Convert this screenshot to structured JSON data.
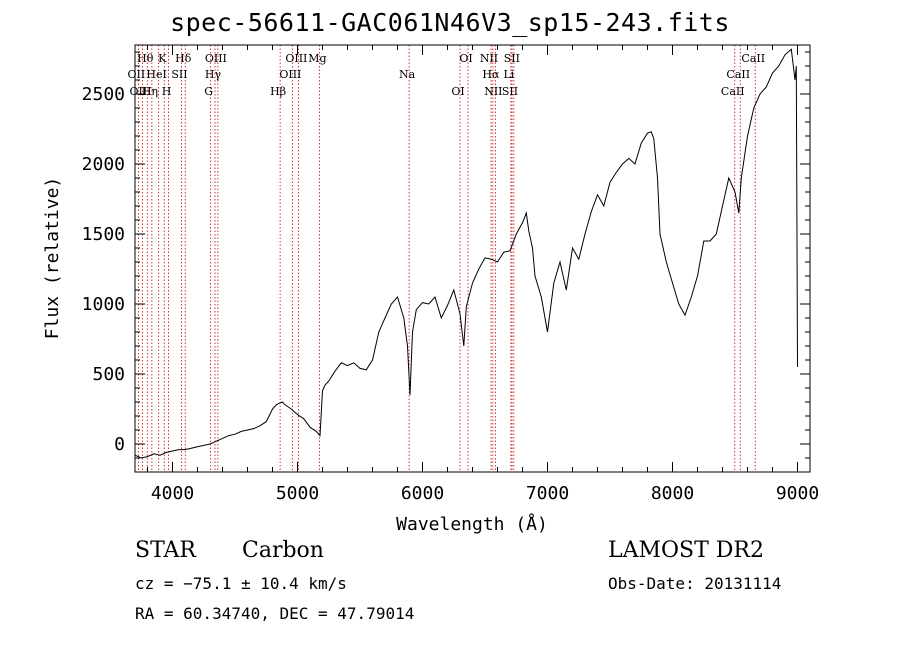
{
  "chart_data": {
    "type": "line",
    "title": "spec-56611-GAC061N46V3_sp15-243.fits",
    "xlabel": "Wavelength (Å)",
    "ylabel": "Flux (relative)",
    "xlim": [
      3700,
      9100
    ],
    "ylim": [
      -200,
      2850
    ],
    "xticks": [
      4000,
      5000,
      6000,
      7000,
      8000,
      9000
    ],
    "yticks": [
      0,
      500,
      1000,
      1500,
      2000,
      2500
    ],
    "grid": false,
    "line_color": "#000000",
    "marker_color": "#cc0000",
    "series": [
      {
        "x": [
          3700,
          3750,
          3800,
          3850,
          3900,
          3950,
          4000,
          4050,
          4100,
          4150,
          4200,
          4250,
          4300,
          4350,
          4400,
          4450,
          4500,
          4550,
          4600,
          4650,
          4700,
          4750,
          4800,
          4830,
          4850,
          4880,
          4900,
          4950,
          5000,
          5050,
          5100,
          5150,
          5180,
          5200,
          5220,
          5250,
          5300,
          5350,
          5400,
          5450,
          5500,
          5550,
          5600,
          5650,
          5680,
          5700,
          5750,
          5800,
          5850,
          5880,
          5900,
          5920,
          5950,
          6000,
          6050,
          6100,
          6150,
          6200,
          6250,
          6300,
          6330,
          6350,
          6400,
          6450,
          6500,
          6550,
          6600,
          6650,
          6700,
          6750,
          6800,
          6830,
          6850,
          6880,
          6900,
          6950,
          7000,
          7050,
          7100,
          7150,
          7200,
          7250,
          7300,
          7350,
          7400,
          7450,
          7500,
          7550,
          7600,
          7650,
          7700,
          7750,
          7800,
          7830,
          7850,
          7880,
          7900,
          7950,
          8000,
          8050,
          8100,
          8150,
          8200,
          8250,
          8300,
          8350,
          8400,
          8450,
          8500,
          8530,
          8550,
          8600,
          8650,
          8700,
          8750,
          8800,
          8850,
          8900,
          8950,
          8980,
          8990,
          9000
        ],
        "y": [
          -80,
          -100,
          -90,
          -70,
          -80,
          -60,
          -50,
          -40,
          -40,
          -30,
          -20,
          -10,
          0,
          20,
          40,
          60,
          70,
          90,
          100,
          110,
          130,
          160,
          250,
          280,
          290,
          300,
          280,
          250,
          210,
          180,
          120,
          90,
          60,
          380,
          420,
          450,
          520,
          580,
          560,
          580,
          540,
          530,
          600,
          800,
          860,
          900,
          1000,
          1050,
          900,
          700,
          350,
          800,
          960,
          1010,
          1000,
          1050,
          900,
          990,
          1100,
          930,
          700,
          980,
          1150,
          1250,
          1330,
          1320,
          1300,
          1370,
          1380,
          1500,
          1580,
          1650,
          1520,
          1400,
          1200,
          1050,
          800,
          1150,
          1300,
          1100,
          1400,
          1320,
          1500,
          1660,
          1780,
          1700,
          1870,
          1940,
          2000,
          2040,
          2000,
          2150,
          2220,
          2230,
          2180,
          1900,
          1500,
          1300,
          1150,
          1000,
          920,
          1050,
          1200,
          1450,
          1450,
          1500,
          1700,
          1900,
          1800,
          1650,
          1900,
          2200,
          2400,
          2500,
          2550,
          2650,
          2700,
          2780,
          2820,
          2600,
          2700,
          550
        ]
      }
    ],
    "lines": [
      {
        "label": "Hθ",
        "x": 3798
      },
      {
        "label": "OII",
        "x": 3727
      },
      {
        "label": "OIII",
        "x": 3760
      },
      {
        "label": "K",
        "x": 3934
      },
      {
        "label": "HeI",
        "x": 3889
      },
      {
        "label": "Hη",
        "x": 3835
      },
      {
        "label": "Hδ",
        "x": 4102
      },
      {
        "label": "SII",
        "x": 4072
      },
      {
        "label": "H",
        "x": 3968
      },
      {
        "label": "OIII",
        "x": 4363
      },
      {
        "label": "Hγ",
        "x": 4340
      },
      {
        "label": "G",
        "x": 4305
      },
      {
        "label": "OIII",
        "x": 5007
      },
      {
        "label": "OIII",
        "x": 4959
      },
      {
        "label": "Hβ",
        "x": 4861
      },
      {
        "label": "Mg",
        "x": 5175
      },
      {
        "label": "Na",
        "x": 5893
      },
      {
        "label": "OI",
        "x": 6300
      },
      {
        "label": "OI",
        "x": 6364
      },
      {
        "label": "Hα",
        "x": 6563
      },
      {
        "label": "SII",
        "x": 6716
      },
      {
        "label": "NII",
        "x": 6548
      },
      {
        "label": "Li",
        "x": 6707
      },
      {
        "label": "NII",
        "x": 6583
      },
      {
        "label": "SII",
        "x": 6731
      },
      {
        "label": "CaII",
        "x": 8542
      },
      {
        "label": "CaII",
        "x": 8498
      },
      {
        "label": "CaII",
        "x": 8662
      }
    ]
  },
  "info": {
    "object_class": "STAR",
    "subclass": "Carbon",
    "survey": "LAMOST DR2",
    "redshift": "cz = −75.1 ± 10.4 km/s",
    "obs_date": "Obs-Date: 20131114",
    "coords": "RA =  60.34740, DEC =  47.79014"
  }
}
